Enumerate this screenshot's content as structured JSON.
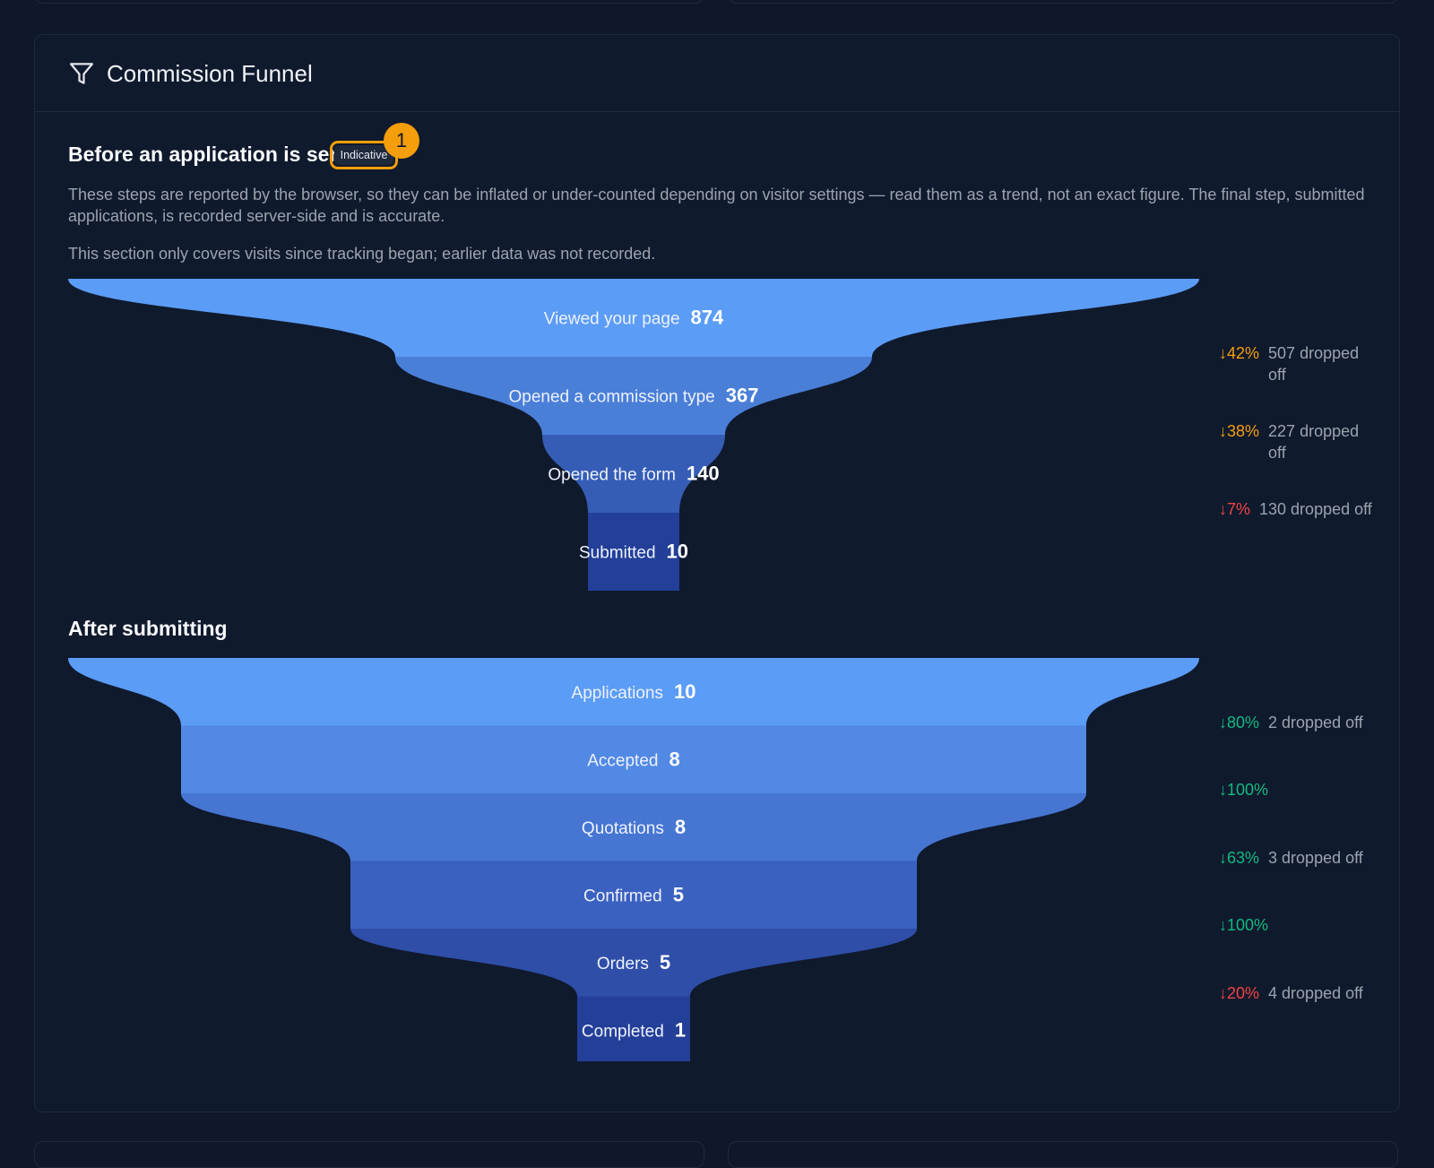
{
  "card": {
    "title": "Commission Funnel",
    "icon": "funnel-icon"
  },
  "before": {
    "title": "Before an application is sent",
    "badge": "Indicative",
    "marker": "1",
    "description": "These steps are reported by the browser, so they can be inflated or under-counted depending on visitor settings — read them as a trend, not an exact figure. The final step, submitted applications, is recorded server-side and is accurate.",
    "note": "This section only covers visits since tracking began; earlier data was not recorded.",
    "steps": [
      {
        "label": "Viewed your page",
        "value": "874",
        "color": "#5b9cf6"
      },
      {
        "label": "Opened a commission type",
        "value": "367",
        "color": "#4a7fd8"
      },
      {
        "label": "Opened the form",
        "value": "140",
        "color": "#355db5"
      },
      {
        "label": "Submitted",
        "value": "10",
        "color": "#233f98"
      }
    ],
    "dropoffs": [
      {
        "pct": "↓42%",
        "text": "507 dropped off",
        "color": "#f59e0b"
      },
      {
        "pct": "↓38%",
        "text": "227 dropped off",
        "color": "#f59e0b"
      },
      {
        "pct": "↓7%",
        "text": "130 dropped off",
        "color": "#ef4444"
      }
    ]
  },
  "after": {
    "title": "After submitting",
    "steps": [
      {
        "label": "Applications",
        "value": "10",
        "color": "#5b9cf6"
      },
      {
        "label": "Accepted",
        "value": "8",
        "color": "#5189e4"
      },
      {
        "label": "Quotations",
        "value": "8",
        "color": "#4676d2"
      },
      {
        "label": "Confirmed",
        "value": "5",
        "color": "#3a61bf"
      },
      {
        "label": "Orders",
        "value": "5",
        "color": "#2e4ea8"
      },
      {
        "label": "Completed",
        "value": "1",
        "color": "#233f98"
      }
    ],
    "dropoffs": [
      {
        "pct": "↓80%",
        "text": "2 dropped off",
        "color": "#10b981"
      },
      {
        "pct": "↓100%",
        "text": "",
        "color": "#10b981"
      },
      {
        "pct": "↓63%",
        "text": "3 dropped off",
        "color": "#10b981"
      },
      {
        "pct": "↓100%",
        "text": "",
        "color": "#10b981"
      },
      {
        "pct": "↓20%",
        "text": "4 dropped off",
        "color": "#ef4444"
      }
    ]
  }
}
